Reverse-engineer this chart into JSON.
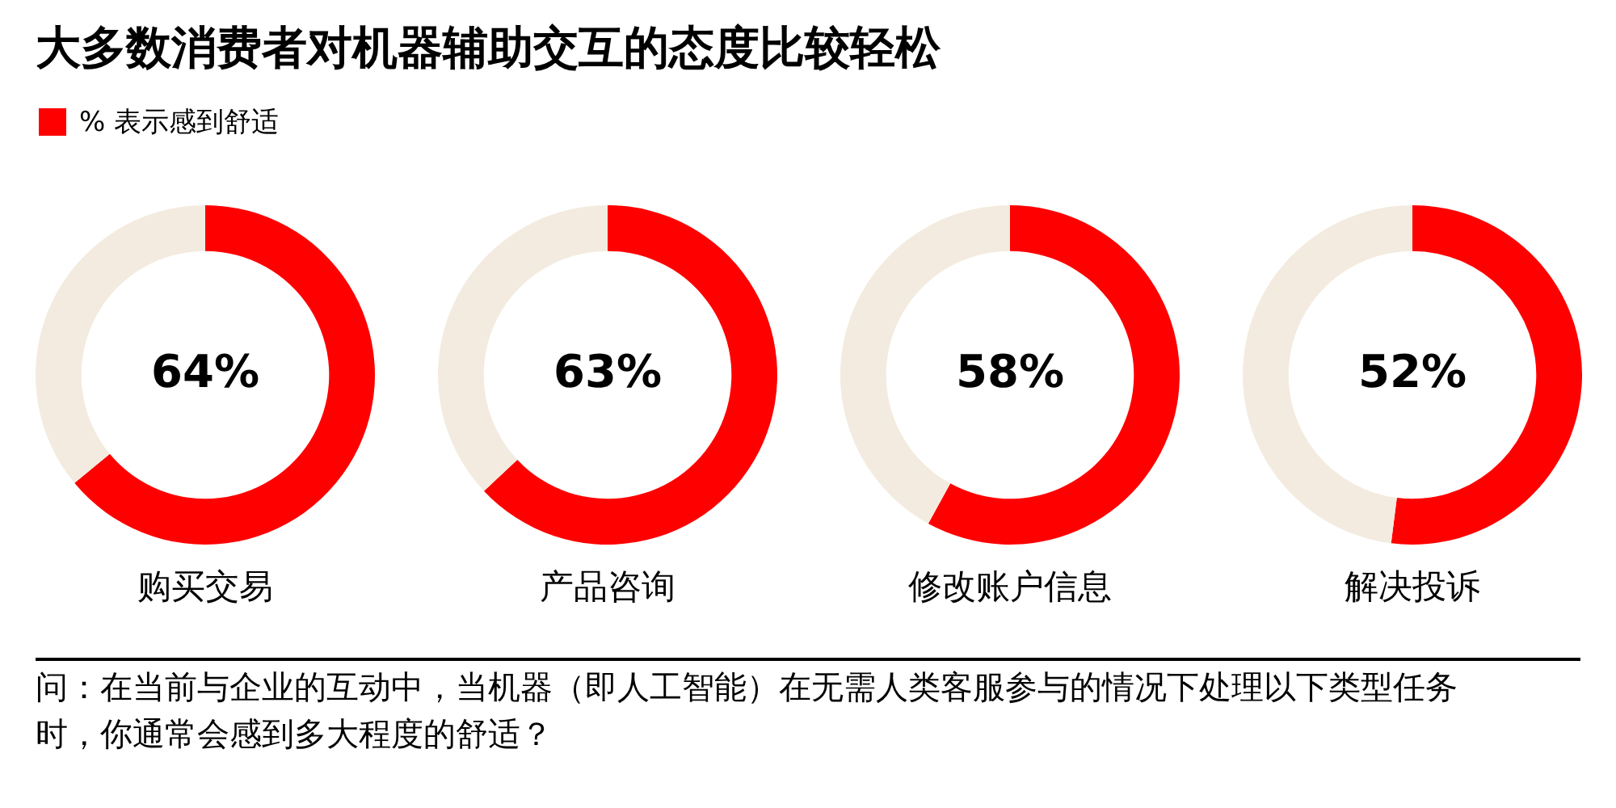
{
  "chart_data": [
    {
      "type": "donut",
      "title": "大多数消费者对机器辅助交互的态度比较轻松",
      "legend": "top left",
      "categories": [
        "% 表示感到舒适",
        null
      ],
      "values": [
        64,
        36
      ],
      "colors": [
        "#ff0000",
        "#f3ebdf"
      ],
      "value_labels": [
        "64%",
        null
      ],
      "xlabel": "购买交易",
      "annotations": [
        "问：在当前与企业的互动中，当机器（即人工智能）在无需人类客服参与的情况下处理以下类型任务时，你通常会感到多大程度的舒适？"
      ]
    },
    {
      "type": "donut",
      "categories": [
        null,
        null
      ],
      "values": [
        63,
        37
      ],
      "colors": [
        "#ff0000",
        "#f3ebdf"
      ],
      "value_labels": [
        "63%",
        null
      ],
      "xlabel": "产品咨询"
    },
    {
      "type": "donut",
      "categories": [
        null,
        null
      ],
      "values": [
        58,
        42
      ],
      "colors": [
        "#ff0000",
        "#f3ebdf"
      ],
      "value_labels": [
        "58%",
        null
      ],
      "xlabel": "修改账户信息"
    },
    {
      "type": "donut",
      "categories": [
        null,
        null
      ],
      "values": [
        52,
        48
      ],
      "colors": [
        "#ff0000",
        "#f3ebdf"
      ],
      "value_labels": [
        "52%",
        null
      ],
      "xlabel": "解决投诉"
    }
  ]
}
